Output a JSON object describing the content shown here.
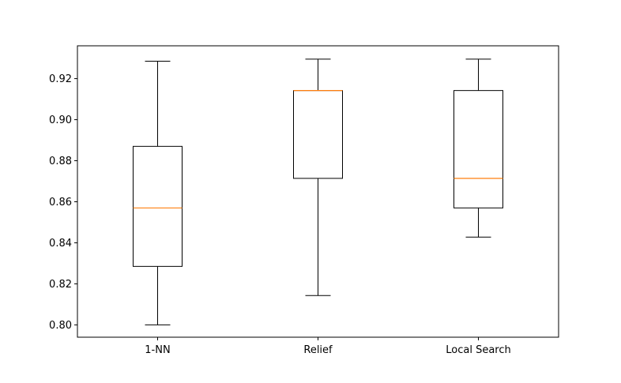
{
  "chart_data": {
    "type": "box",
    "title": "",
    "xlabel": "",
    "ylabel": "",
    "ylim": [
      0.794,
      0.936
    ],
    "grid": false,
    "yticks": [
      0.8,
      0.82,
      0.84,
      0.86,
      0.88,
      0.9,
      0.92
    ],
    "ytick_labels": [
      "0.80",
      "0.82",
      "0.84",
      "0.86",
      "0.88",
      "0.90",
      "0.92"
    ],
    "categories": [
      "1-NN",
      "Relief",
      "Local Search"
    ],
    "boxes": [
      {
        "label": "1-NN",
        "min": 0.8,
        "q1": 0.8285,
        "median": 0.857,
        "q3": 0.887,
        "max": 0.9285
      },
      {
        "label": "Relief",
        "min": 0.8143,
        "q1": 0.8714,
        "median": 0.9142,
        "q3": 0.9142,
        "max": 0.9295
      },
      {
        "label": "Local Search",
        "min": 0.8428,
        "q1": 0.857,
        "median": 0.8714,
        "q3": 0.9142,
        "max": 0.9295
      }
    ],
    "colors": {
      "box": "#000000",
      "median": "#ff7f0e",
      "axes": "#000000"
    }
  }
}
